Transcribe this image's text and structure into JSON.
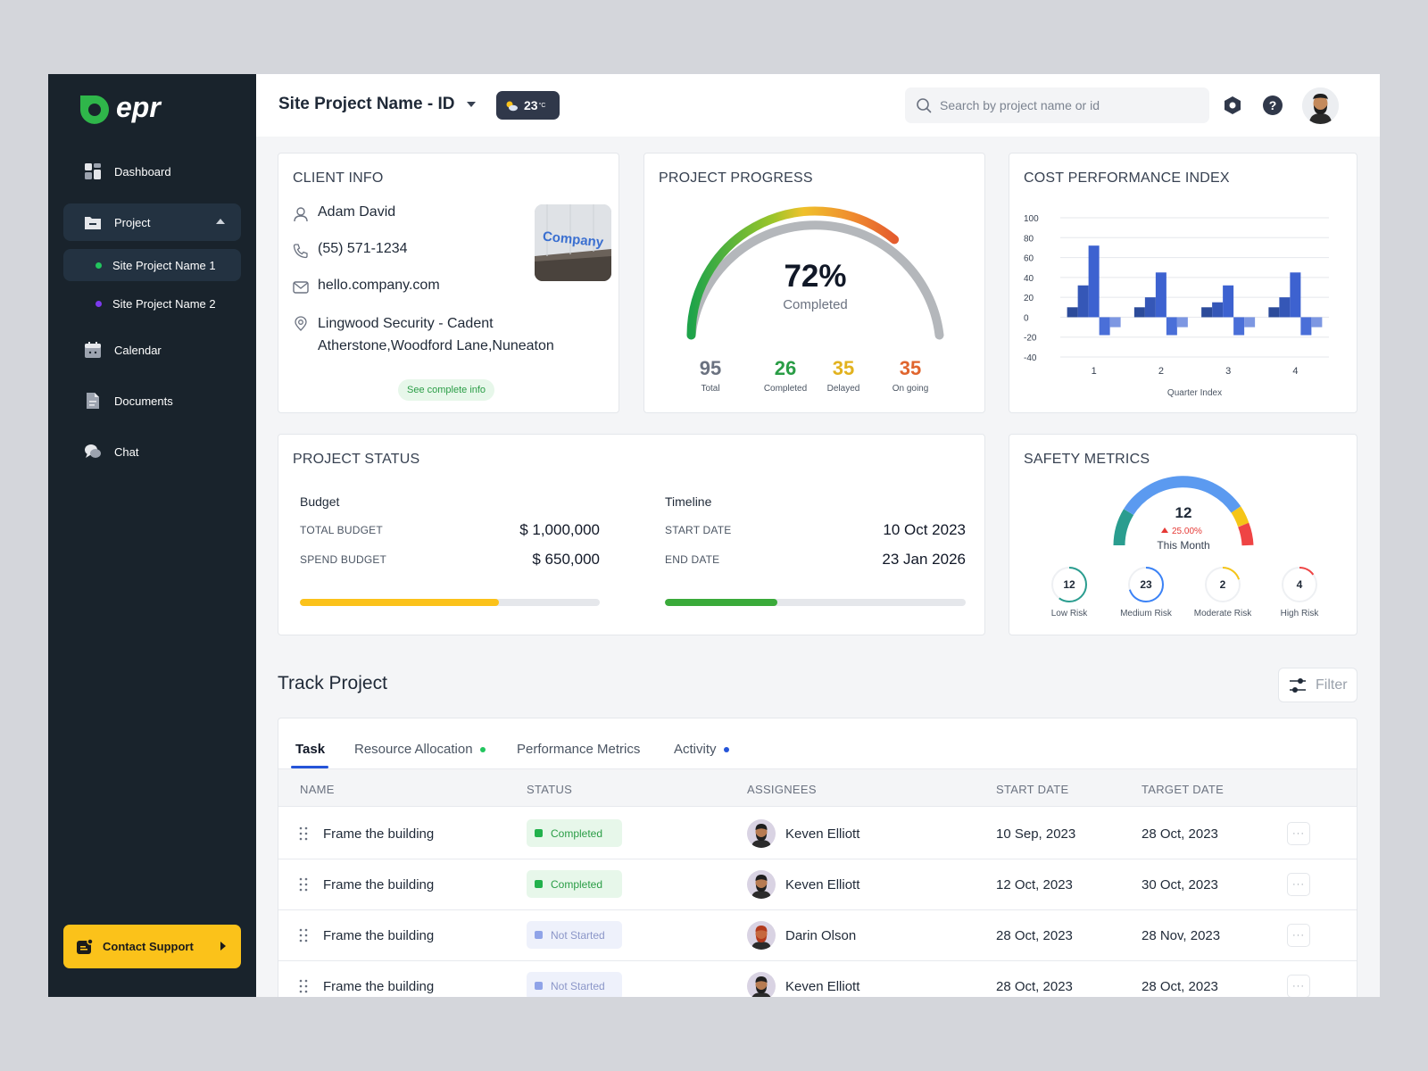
{
  "sidebar": {
    "items": [
      {
        "label": "Dashboard",
        "icon": "dashboard-icon"
      },
      {
        "label": "Project",
        "icon": "folder-icon"
      },
      {
        "label": "Calendar",
        "icon": "calendar-icon"
      },
      {
        "label": "Documents",
        "icon": "document-icon"
      },
      {
        "label": "Chat",
        "icon": "chat-icon"
      }
    ],
    "sub_items": [
      {
        "label": "Site Project Name 1",
        "dot_color": "#22c55e"
      },
      {
        "label": "Site Project Name 2",
        "dot_color": "#7c3aed"
      }
    ],
    "support_label": "Contact Support"
  },
  "header": {
    "project_title": "Site Project Name - ID",
    "temperature": "23",
    "temp_unit": "°C",
    "search_placeholder": "Search by project name or id"
  },
  "client_info": {
    "title": "CLIENT INFO",
    "name": "Adam David",
    "phone": "(55) 571-1234",
    "email": "hello.company.com",
    "address_line1": "Lingwood Security - Cadent",
    "address_line2": "Atherstone,Woodford Lane,Nuneaton",
    "image_text": "Company",
    "see_more": "See complete info"
  },
  "project_progress": {
    "title": "PROJECT PROGRESS",
    "percent": 72,
    "percent_text": "72%",
    "caption": "Completed",
    "stats": [
      {
        "value": "95",
        "label": "Total",
        "color": "#6b7280"
      },
      {
        "value": "26",
        "label": "Completed",
        "color": "#2a9d46"
      },
      {
        "value": "35",
        "label": "Delayed",
        "color": "#e2b21e"
      },
      {
        "value": "35",
        "label": "On going",
        "color": "#e0652e"
      }
    ]
  },
  "cost_performance": {
    "title": "COST PERFORMANCE INDEX"
  },
  "chart_data": {
    "type": "bar",
    "title": "COST PERFORMANCE INDEX",
    "xlabel": "Quarter Index",
    "ylabel": "",
    "ylim": [
      -40,
      100
    ],
    "yticks": [
      100,
      80,
      60,
      40,
      20,
      0,
      -20,
      -40
    ],
    "categories": [
      "1",
      "2",
      "3",
      "4"
    ],
    "series": [
      {
        "values": [
          10,
          10,
          10,
          10
        ],
        "color": "#2c4b9a"
      },
      {
        "values": [
          32,
          20,
          15,
          20
        ],
        "color": "#3557b7"
      },
      {
        "values": [
          72,
          45,
          32,
          45
        ],
        "color": "#3d62d0"
      },
      {
        "values": [
          -18,
          -18,
          -18,
          -18
        ],
        "color": "#4a6fd8"
      },
      {
        "values": [
          -10,
          -10,
          -10,
          -10
        ],
        "color": "#7d97e2"
      }
    ],
    "grid": true
  },
  "project_status": {
    "title": "PROJECT STATUS",
    "budget_heading": "Budget",
    "total_budget_label": "TOTAL BUDGET",
    "total_budget_value": "$ 1,000,000",
    "spend_budget_label": "SPEND BUDGET",
    "spend_budget_value": "$ 650,000",
    "budget_progress": 0.665,
    "timeline_heading": "Timeline",
    "start_date_label": "START DATE",
    "start_date_value": "10 Oct 2023",
    "end_date_label": "END DATE",
    "end_date_value": "23 Jan 2026",
    "timeline_progress": 0.375
  },
  "safety": {
    "title": "SAFETY METRICS",
    "value": "12",
    "change": "25.00%",
    "period": "This Month",
    "risks": [
      {
        "value": "12",
        "label": "Low Risk",
        "color": "#2a9d8f",
        "fraction": 0.6
      },
      {
        "value": "23",
        "label": "Medium Risk",
        "color": "#3b82f6",
        "fraction": 0.7
      },
      {
        "value": "2",
        "label": "Moderate Risk",
        "color": "#f5c518",
        "fraction": 0.2
      },
      {
        "value": "4",
        "label": "High Risk",
        "color": "#ef4444",
        "fraction": 0.15
      }
    ]
  },
  "track": {
    "title": "Track Project",
    "filter_label": "Filter",
    "tabs": [
      {
        "label": "Task",
        "dot": ""
      },
      {
        "label": "Resource Allocation",
        "dot": "#22c55e"
      },
      {
        "label": "Performance Metrics",
        "dot": ""
      },
      {
        "label": "Activity",
        "dot": "#2554d8"
      }
    ],
    "columns": [
      "NAME",
      "STATUS",
      "ASSIGNEES",
      "START DATE",
      "TARGET DATE"
    ],
    "rows": [
      {
        "name": "Frame the building",
        "status": "Completed",
        "assignee": "Keven Elliott",
        "start": "10 Sep, 2023",
        "target": "28 Oct, 2023"
      },
      {
        "name": "Frame the building",
        "status": "Completed",
        "assignee": "Keven Elliott",
        "start": "12 Oct, 2023",
        "target": "30 Oct, 2023"
      },
      {
        "name": "Frame the building",
        "status": "Not Started",
        "assignee": "Darin Olson",
        "start": "28 Oct, 2023",
        "target": "28 Nov, 2023"
      },
      {
        "name": "Frame the building",
        "status": "Not Started",
        "assignee": "Keven Elliott",
        "start": "28 Oct, 2023",
        "target": "28 Oct, 2023"
      }
    ]
  }
}
